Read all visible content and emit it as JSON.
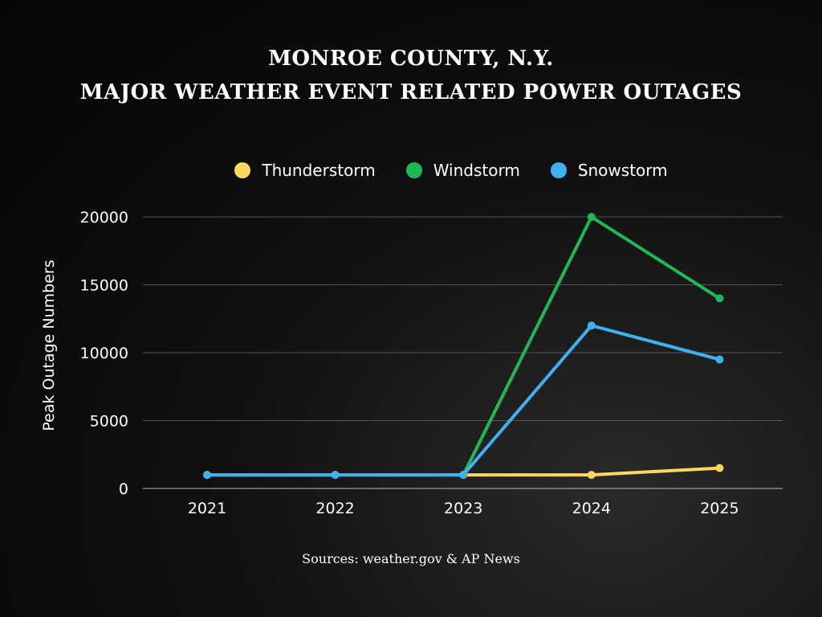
{
  "chart_data": {
    "type": "line",
    "title_line1": "MONROE COUNTY, N.Y.",
    "title_line2": "MAJOR WEATHER EVENT RELATED POWER OUTAGES",
    "ylabel": "Peak Outage Numbers",
    "xlabel": "",
    "categories": [
      "2021",
      "2022",
      "2023",
      "2024",
      "2025"
    ],
    "yticks": [
      "0",
      "5000",
      "10000",
      "15000",
      "20000"
    ],
    "ylim": [
      0,
      20000
    ],
    "grid": true,
    "legend_position": "top",
    "series": [
      {
        "name": "Thunderstorm",
        "color": "#fcd95a",
        "values": [
          1000,
          1000,
          1000,
          1000,
          1500
        ]
      },
      {
        "name": "Windstorm",
        "color": "#1db954",
        "values": [
          1000,
          1000,
          1000,
          20000,
          14000
        ]
      },
      {
        "name": "Snowstorm",
        "color": "#3fb0f0",
        "values": [
          1000,
          1000,
          1000,
          12000,
          9500
        ]
      }
    ],
    "source": "Sources: weather.gov & AP News"
  }
}
